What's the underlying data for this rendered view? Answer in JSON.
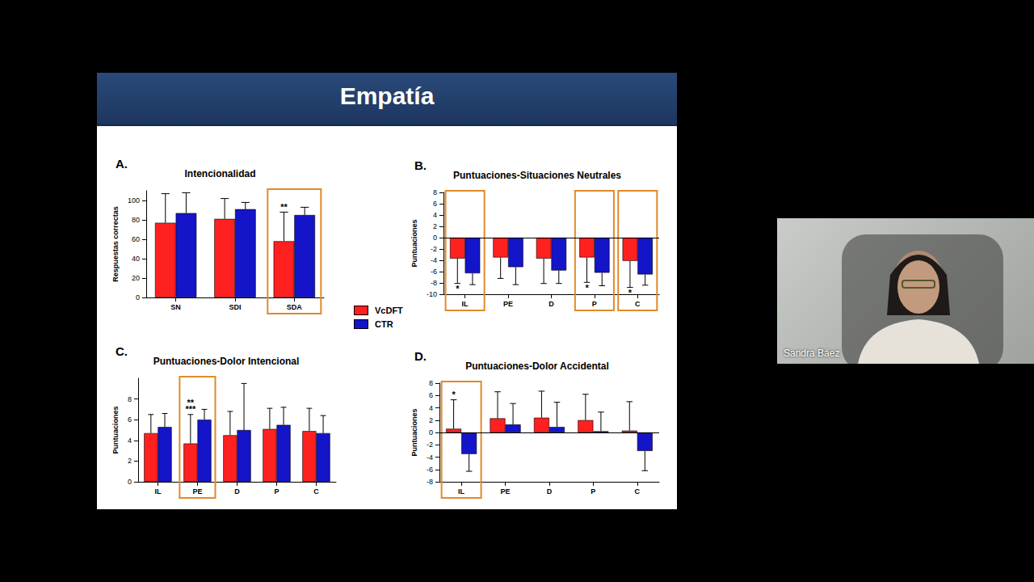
{
  "slide_title": "Empatía",
  "speaker": "Sandra Báez",
  "chart_data": [
    {
      "type": "bar",
      "panel": "A.",
      "title": "Intencionalidad",
      "y_label": "Respuestas correctas",
      "categories": [
        "SN",
        "SDI",
        "SDA"
      ],
      "ylim": [
        0,
        110
      ],
      "yticks": [
        0,
        20,
        40,
        60,
        80,
        100
      ],
      "legend": "right",
      "series": [
        {
          "name": "VcDFT",
          "color": "#ff2020",
          "values": [
            77,
            81,
            58
          ],
          "errors": [
            30,
            21,
            30
          ]
        },
        {
          "name": "CTR",
          "color": "#1414c8",
          "values": [
            87,
            91,
            85
          ],
          "errors": [
            21,
            7,
            8
          ]
        }
      ],
      "annotations": [
        {
          "category": "SDA",
          "series": "VcDFT",
          "text": "**"
        }
      ],
      "highlighted": [
        "SDA"
      ]
    },
    {
      "type": "bar",
      "panel": "B.",
      "title": "Puntuaciones-Situaciones Neutrales",
      "y_label": "Puntuaciones",
      "categories": [
        "IL",
        "PE",
        "D",
        "P",
        "C"
      ],
      "ylim": [
        -10,
        8
      ],
      "yticks": [
        -10,
        -8,
        -6,
        -4,
        -2,
        0,
        2,
        4,
        6,
        8
      ],
      "series": [
        {
          "name": "VcDFT",
          "color": "#ff2020",
          "values": [
            -3.7,
            -3.5,
            -3.7,
            -3.5,
            -4.1
          ],
          "errors": [
            4.4,
            3.7,
            4.4,
            4.4,
            4.7
          ]
        },
        {
          "name": "CTR",
          "color": "#1414c8",
          "values": [
            -6.3,
            -5.2,
            -5.8,
            -6.2,
            -6.5
          ],
          "errors": [
            2.0,
            3.1,
            2.3,
            2.3,
            1.9
          ]
        }
      ],
      "annotations": [
        {
          "category": "IL",
          "series": "VcDFT",
          "text": "*"
        },
        {
          "category": "P",
          "series": "VcDFT",
          "text": "*"
        },
        {
          "category": "C",
          "series": "VcDFT",
          "text": "*"
        }
      ],
      "highlighted": [
        "IL",
        "P",
        "C"
      ]
    },
    {
      "type": "bar",
      "panel": "C.",
      "title": "Puntuaciones-Dolor Intencional",
      "y_label": "Puntuaciones",
      "categories": [
        "IL",
        "PE",
        "D",
        "P",
        "C"
      ],
      "ylim": [
        0,
        10
      ],
      "yticks": [
        0,
        2,
        4,
        6,
        8
      ],
      "series": [
        {
          "name": "VcDFT",
          "color": "#ff2020",
          "values": [
            4.7,
            3.7,
            4.5,
            5.1,
            4.9
          ],
          "errors": [
            1.8,
            2.8,
            2.3,
            2.0,
            2.2
          ]
        },
        {
          "name": "CTR",
          "color": "#1414c8",
          "values": [
            5.3,
            6.0,
            5.0,
            5.5,
            4.7
          ],
          "errors": [
            1.3,
            1.0,
            4.5,
            1.7,
            1.7
          ]
        }
      ],
      "annotations": [
        {
          "category": "PE",
          "series": "VcDFT",
          "text": "***"
        },
        {
          "category": "PE",
          "series": "VcDFT",
          "text": "**"
        }
      ],
      "highlighted": [
        "PE"
      ]
    },
    {
      "type": "bar",
      "panel": "D.",
      "title": "Puntuaciones-Dolor Accidental",
      "y_label": "Puntuaciones",
      "categories": [
        "IL",
        "PE",
        "D",
        "P",
        "C"
      ],
      "ylim": [
        -8,
        8
      ],
      "yticks": [
        -8,
        -6,
        -4,
        -2,
        0,
        2,
        4,
        6,
        8
      ],
      "series": [
        {
          "name": "VcDFT",
          "color": "#ff2020",
          "values": [
            0.6,
            2.3,
            2.4,
            2.0,
            0.3
          ],
          "errors": [
            4.7,
            4.3,
            4.3,
            4.2,
            4.7
          ]
        },
        {
          "name": "CTR",
          "color": "#1414c8",
          "values": [
            -3.5,
            1.3,
            0.9,
            0.2,
            -3.0
          ],
          "errors": [
            2.8,
            3.4,
            4.0,
            3.1,
            3.2
          ]
        }
      ],
      "annotations": [
        {
          "category": "IL",
          "series": "VcDFT",
          "text": "*"
        }
      ],
      "highlighted": [
        "IL"
      ]
    }
  ]
}
